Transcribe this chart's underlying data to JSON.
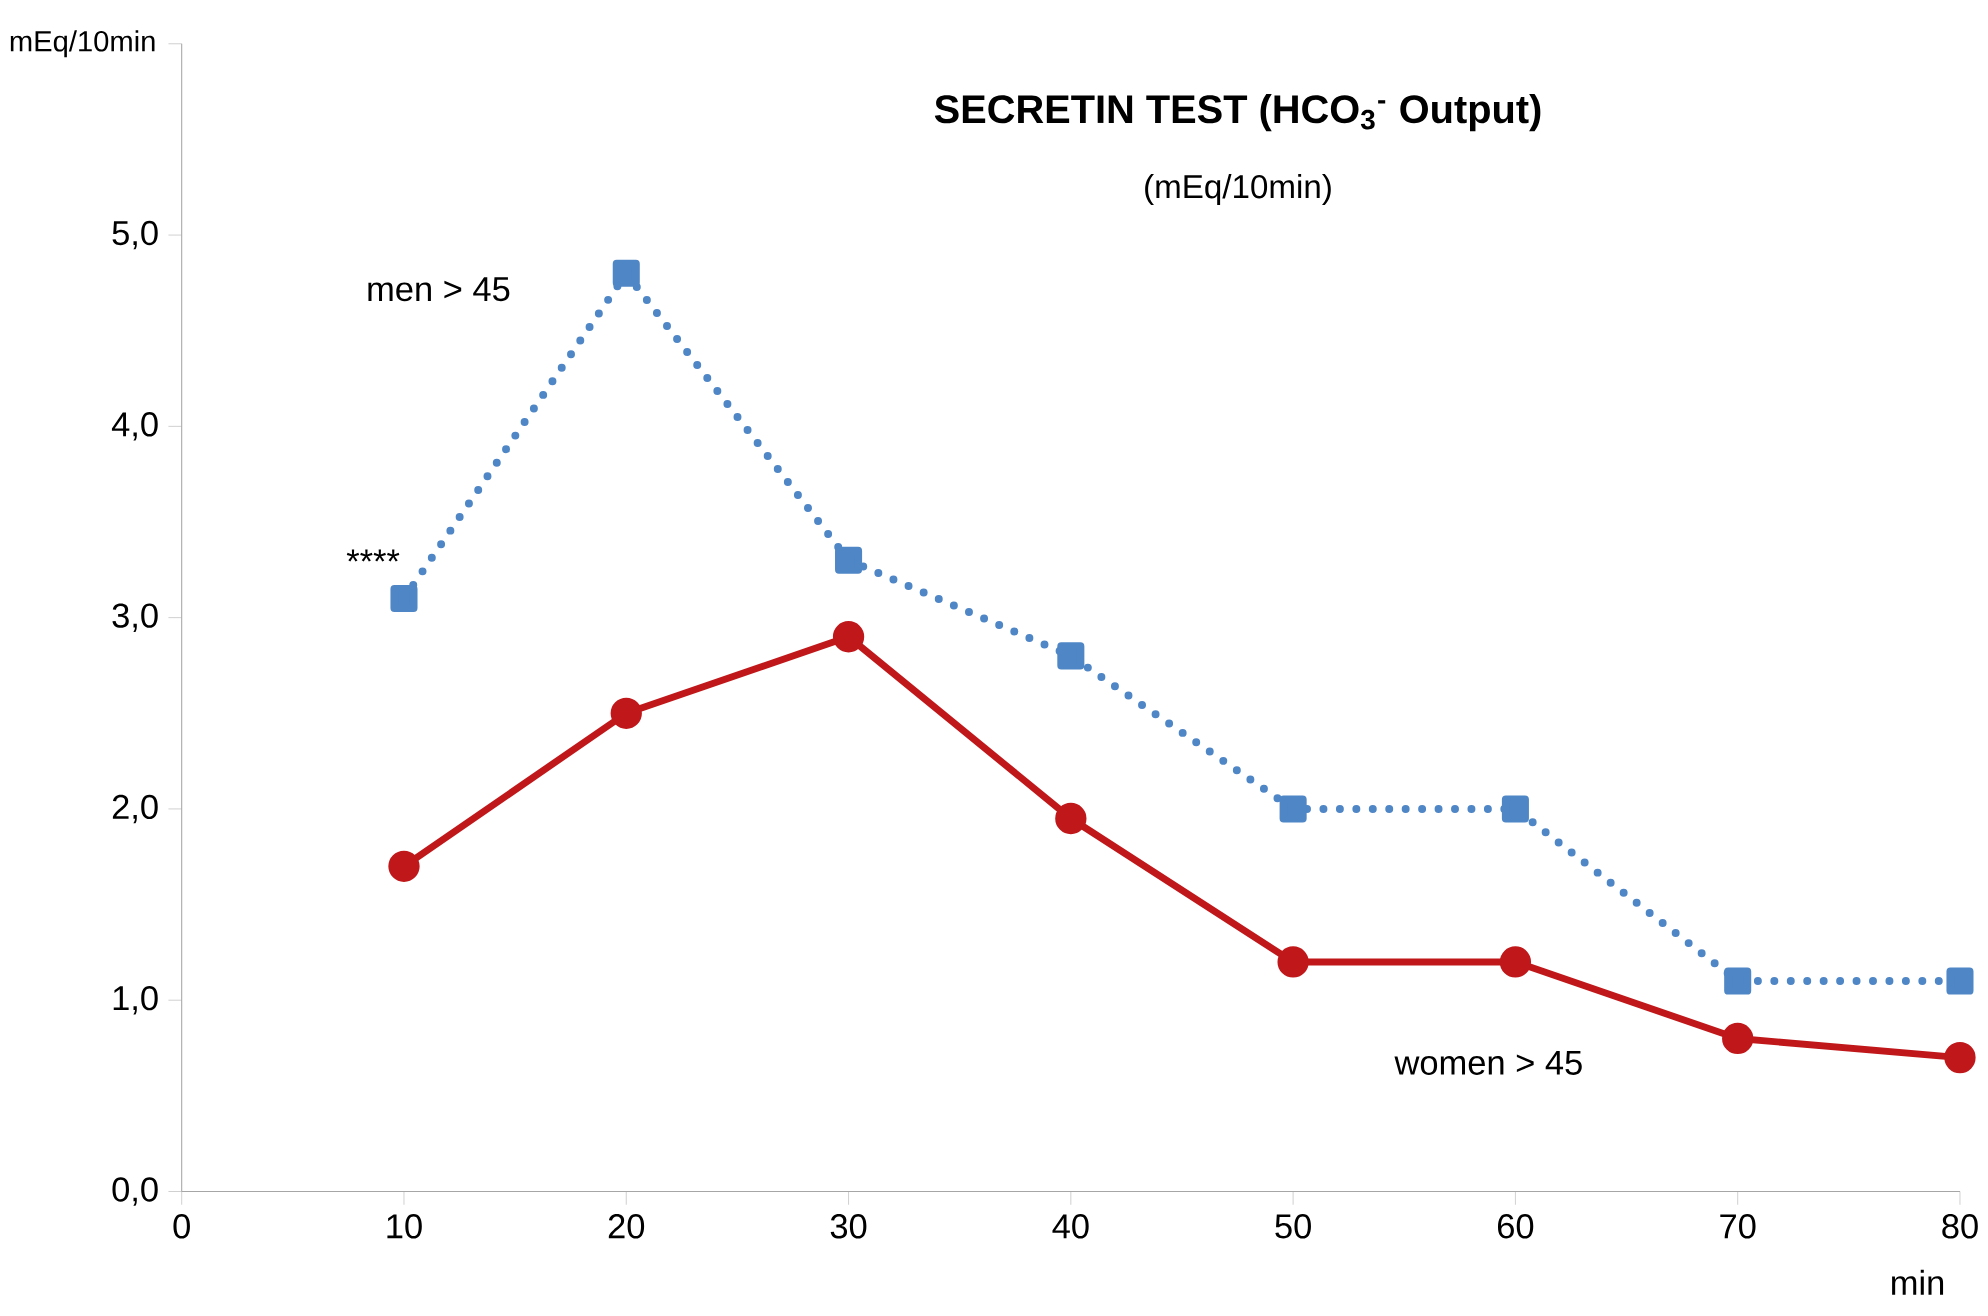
{
  "chart_data": {
    "type": "line",
    "title": "SECRETIN TEST (HCO$_{3}$$^{-}$ Output)",
    "subtitle": "(mEq/10min)",
    "ylabel": "mEq/10min",
    "xlabel": "min",
    "x": [
      10,
      20,
      30,
      40,
      50,
      60,
      70,
      80
    ],
    "series": [
      {
        "name": "men > 45",
        "color": "#4f86c6",
        "marker": "square",
        "line_style": "dotted",
        "values": [
          3.1,
          4.8,
          3.3,
          2.8,
          2.0,
          2.0,
          1.1,
          1.1
        ]
      },
      {
        "name": "women > 45",
        "color": "#c0181a",
        "marker": "circle",
        "line_style": "solid",
        "values": [
          1.7,
          2.5,
          2.9,
          1.95,
          1.2,
          1.2,
          0.8,
          0.7
        ]
      }
    ],
    "xlim": [
      0,
      80
    ],
    "ylim": [
      0,
      6
    ],
    "xticks": [
      0,
      10,
      20,
      30,
      40,
      50,
      60,
      70,
      80
    ],
    "yticks": [
      {
        "value": 0,
        "label": "0,0"
      },
      {
        "value": 1,
        "label": "1,0"
      },
      {
        "value": 2,
        "label": "2,0"
      },
      {
        "value": 3,
        "label": "3,0"
      },
      {
        "value": 4,
        "label": "4,0"
      },
      {
        "value": 5,
        "label": "5,0"
      },
      {
        "value": 6,
        "label": null
      }
    ],
    "annotations": [
      {
        "text": "****",
        "x": 10,
        "y": 3.1
      }
    ]
  }
}
